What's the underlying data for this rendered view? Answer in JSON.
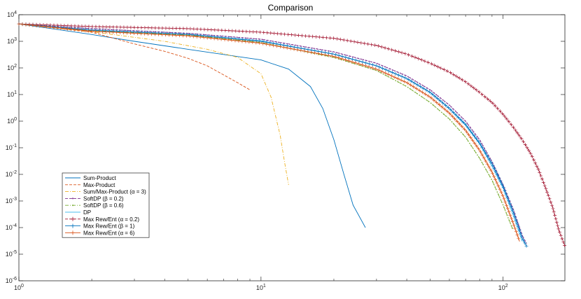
{
  "chart_data": {
    "type": "line",
    "title": "Comparison",
    "xlabel": "",
    "ylabel": "",
    "xscale": "log",
    "yscale": "log",
    "xlim": [
      1,
      180
    ],
    "ylim": [
      1e-06,
      10000.0
    ],
    "grid": false,
    "legend_position": "lower-left",
    "x_ticks": [
      {
        "base": "10",
        "exp": "0",
        "value": 1
      },
      {
        "base": "10",
        "exp": "1",
        "value": 10
      },
      {
        "base": "10",
        "exp": "2",
        "value": 100
      }
    ],
    "y_ticks": [
      {
        "base": "10",
        "exp": "4",
        "value": 10000.0
      },
      {
        "base": "10",
        "exp": "3",
        "value": 1000.0
      },
      {
        "base": "10",
        "exp": "2",
        "value": 100.0
      },
      {
        "base": "10",
        "exp": "1",
        "value": 10.0
      },
      {
        "base": "10",
        "exp": "0",
        "value": 1
      },
      {
        "base": "10",
        "exp": "-1",
        "value": 0.1
      },
      {
        "base": "10",
        "exp": "-2",
        "value": 0.01
      },
      {
        "base": "10",
        "exp": "-3",
        "value": 0.001
      },
      {
        "base": "10",
        "exp": "-4",
        "value": 0.0001
      },
      {
        "base": "10",
        "exp": "-5",
        "value": 1e-05
      },
      {
        "base": "10",
        "exp": "-6",
        "value": 1e-06
      }
    ],
    "series": [
      {
        "name": "Sum-Product",
        "color": "#0072BD",
        "dash": "solid",
        "marker": "none",
        "x": [
          1,
          2,
          3,
          5,
          7,
          10,
          13,
          16,
          18,
          20,
          22,
          24,
          27
        ],
        "y": [
          4500,
          1800,
          1000,
          500,
          320,
          200,
          90,
          20,
          3,
          0.2,
          0.01,
          0.0007,
          0.0001
        ]
      },
      {
        "name": "Max-Product",
        "color": "#D95319",
        "dash": "dashed",
        "marker": "none",
        "x": [
          1,
          2,
          3,
          4,
          5,
          6,
          7,
          8,
          9
        ],
        "y": [
          4500,
          2200,
          800,
          420,
          230,
          120,
          55,
          28,
          15
        ]
      },
      {
        "name": "Sum/Max-Product (α = 3)",
        "color": "#EDB120",
        "dash": "dashdot",
        "marker": "none",
        "x": [
          1,
          2,
          4,
          6,
          8,
          10,
          11,
          12,
          12.5,
          13
        ],
        "y": [
          4500,
          2300,
          1000,
          500,
          250,
          60,
          8,
          0.3,
          0.03,
          0.004
        ]
      },
      {
        "name": "SoftDP (β = 0.2)",
        "color": "#7E2F8E",
        "dash": "dashed",
        "marker": "dot",
        "x": [
          1,
          2,
          5,
          10,
          20,
          30,
          40,
          50,
          60,
          70,
          80,
          90,
          100,
          110,
          120,
          125
        ],
        "y": [
          4500,
          3000,
          2000,
          1200,
          400,
          150,
          50,
          15,
          4,
          1,
          0.2,
          0.03,
          0.004,
          0.0005,
          5e-05,
          2.5e-05
        ]
      },
      {
        "name": "SoftDP (β = 0.6)",
        "color": "#77AC30",
        "dash": "dashdot",
        "marker": "dot",
        "x": [
          1,
          2,
          5,
          10,
          20,
          30,
          40,
          50,
          60,
          70,
          80,
          90,
          100,
          110
        ],
        "y": [
          4500,
          2500,
          1700,
          900,
          250,
          80,
          20,
          5,
          1.2,
          0.25,
          0.04,
          0.006,
          0.0007,
          8e-05
        ]
      },
      {
        "name": "DP",
        "color": "#4DBEEE",
        "dash": "solid",
        "marker": "none",
        "x": [
          1,
          2,
          5,
          10,
          20,
          30,
          40,
          50,
          60,
          70,
          80,
          90,
          100,
          110,
          120
        ],
        "y": [
          4500,
          2700,
          1850,
          1050,
          330,
          120,
          40,
          12,
          3,
          0.7,
          0.14,
          0.02,
          0.003,
          0.0003,
          3e-05
        ]
      },
      {
        "name": "Max Rew/Ent (α = 0.2)",
        "color": "#A2142F",
        "dash": "dashed",
        "marker": "plus",
        "x": [
          1,
          2,
          5,
          10,
          20,
          30,
          40,
          50,
          60,
          70,
          80,
          90,
          100,
          110,
          120,
          130,
          140,
          150,
          160,
          170,
          180
        ],
        "y": [
          4500,
          3600,
          3000,
          2200,
          1300,
          700,
          330,
          150,
          70,
          30,
          12,
          5,
          1.8,
          0.6,
          0.2,
          0.06,
          0.015,
          0.003,
          0.0006,
          8e-05,
          2e-05
        ]
      },
      {
        "name": "Max Rew/Ent (β = 1)",
        "color": "#0072BD",
        "dash": "solid",
        "marker": "plus",
        "x": [
          1,
          2,
          5,
          10,
          20,
          30,
          40,
          50,
          60,
          70,
          80,
          90,
          100,
          110,
          120,
          125
        ],
        "y": [
          4500,
          2600,
          1800,
          1000,
          330,
          120,
          40,
          12,
          3,
          0.75,
          0.15,
          0.025,
          0.0035,
          0.0004,
          4e-05,
          2e-05
        ]
      },
      {
        "name": "Max Rew/Ent (α = 6)",
        "color": "#D95319",
        "dash": "solid",
        "marker": "plus",
        "x": [
          1,
          2,
          5,
          10,
          20,
          30,
          40,
          50,
          60,
          70,
          80,
          90,
          100,
          110,
          117
        ],
        "y": [
          4500,
          2400,
          1600,
          850,
          270,
          90,
          28,
          8,
          2,
          0.45,
          0.08,
          0.012,
          0.0015,
          0.00015,
          3e-05
        ]
      }
    ]
  }
}
